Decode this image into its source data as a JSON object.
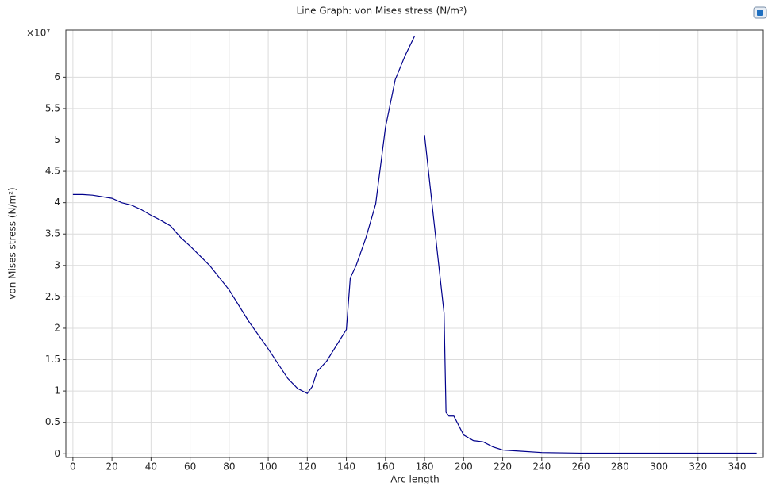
{
  "chart_data": {
    "type": "line",
    "title": "Line Graph: von Mises stress (N/m²)",
    "xlabel": "Arc length",
    "ylabel": "von Mises stress (N/m²)",
    "y_multiplier": "×10⁷",
    "x": [
      0,
      5,
      10,
      20,
      25,
      30,
      35,
      40,
      45,
      50,
      55,
      60,
      70,
      80,
      90,
      100,
      110,
      115,
      120,
      122.5,
      125,
      130,
      135,
      140,
      142,
      145,
      150,
      155,
      160,
      165,
      170,
      175,
      175,
      180,
      185,
      190,
      191,
      192.5,
      195,
      200,
      205,
      210,
      215,
      220,
      230,
      240,
      260,
      280,
      300,
      320,
      340,
      350
    ],
    "values": [
      4.13,
      4.13,
      4.12,
      4.07,
      4.0,
      3.96,
      3.89,
      3.8,
      3.72,
      3.63,
      3.45,
      3.31,
      3.0,
      2.61,
      2.11,
      1.67,
      1.2,
      1.04,
      0.96,
      1.07,
      1.31,
      1.48,
      1.73,
      1.98,
      2.8,
      3.0,
      3.44,
      3.98,
      5.2,
      5.96,
      6.34,
      6.66,
      null,
      5.08,
      3.65,
      2.24,
      0.66,
      0.6,
      0.6,
      0.3,
      0.21,
      0.19,
      0.11,
      0.06,
      0.04,
      0.02,
      0.01,
      0.01,
      0.01,
      0.01,
      0.01,
      0.01
    ],
    "color": "#00008b",
    "xlim": [
      -3.6,
      353.4
    ],
    "ylim": [
      -0.06,
      6.75
    ],
    "xticks": [
      0,
      20,
      40,
      60,
      80,
      100,
      120,
      140,
      160,
      180,
      200,
      220,
      240,
      260,
      280,
      300,
      320,
      340
    ],
    "yticks": [
      0,
      0.5,
      1,
      1.5,
      2,
      2.5,
      3,
      3.5,
      4,
      4.5,
      5,
      5.5,
      6
    ],
    "grid": true
  }
}
